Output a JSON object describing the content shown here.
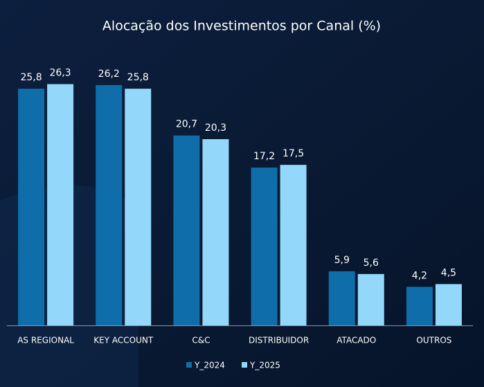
{
  "chart_data": {
    "type": "bar",
    "title": "Alocação dos Investimentos por Canal (%)",
    "categories": [
      "AS REGIONAL",
      "KEY ACCOUNT",
      "C&C",
      "DISTRIBUIDOR",
      "ATACADO",
      "OUTROS"
    ],
    "series": [
      {
        "name": "Y_2024",
        "color": "#0f6eaa",
        "values": [
          25.8,
          26.2,
          20.7,
          17.2,
          5.9,
          4.2
        ],
        "value_labels": [
          "25,8",
          "26,2",
          "20,7",
          "17,2",
          "5,9",
          "4,2"
        ]
      },
      {
        "name": "Y_2025",
        "color": "#93d8fb",
        "values": [
          26.3,
          25.8,
          20.3,
          17.5,
          5.6,
          4.5
        ],
        "value_labels": [
          "26,3",
          "25,8",
          "20,3",
          "17,5",
          "5,6",
          "4,5"
        ]
      }
    ],
    "ylim": [
      0,
      28
    ],
    "grid": false,
    "legend": "bottom"
  }
}
